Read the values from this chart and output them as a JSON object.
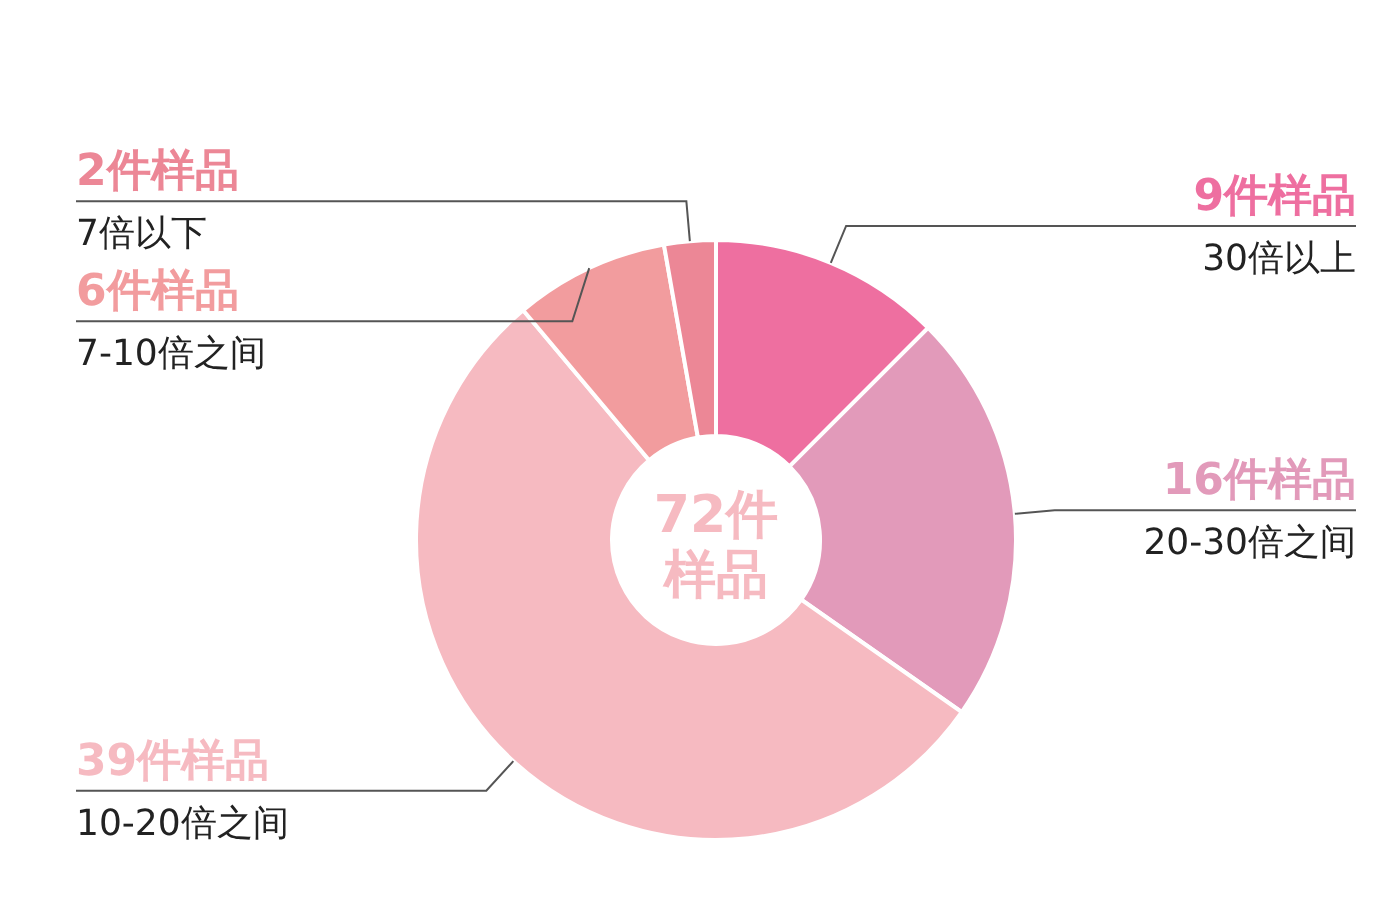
{
  "chart_data": {
    "type": "donut",
    "categories": [
      "30倍以上",
      "20-30倍之间",
      "10-20倍之间",
      "7-10倍之间",
      "7倍以下"
    ],
    "values": [
      9,
      16,
      39,
      6,
      2
    ],
    "value_labels": [
      "9件样品",
      "16件样品",
      "39件样品",
      "6件样品",
      "2件样品"
    ],
    "colors": [
      "#ee6fa0",
      "#e29aba",
      "#f6bac1",
      "#f29c9e",
      "#ec8796"
    ],
    "annotations": [
      "72件样品"
    ]
  }
}
